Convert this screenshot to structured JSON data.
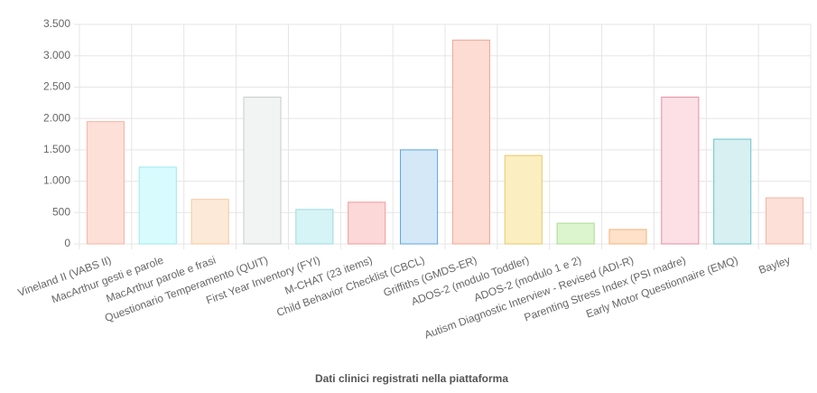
{
  "chart_data": {
    "type": "bar",
    "x_label": "Dati clinici registrati nella piattaforma",
    "categories": [
      "Vineland II (VABS II)",
      "MacArthur gesti e parole",
      "MacArthur parole e frasi",
      "Questionario Temperamento (QUIT)",
      "First Year Inventory (FYI)",
      "M-CHAT (23 items)",
      "Child Behavior Checklist (CBCL)",
      "Griffiths (GMDS-ER)",
      "ADOS-2 (modulo Toddler)",
      "ADOS-2 (modulo 1 e 2)",
      "Autism Diagnostic Interview - Revised (ADI-R)",
      "Parenting Stress Index (PSI madre)",
      "Early Motor Questionnaire (EMQ)",
      "Bayley"
    ],
    "values": [
      1950,
      1225,
      710,
      2340,
      550,
      665,
      1500,
      3250,
      1410,
      330,
      230,
      2340,
      1670,
      735
    ],
    "colors": [
      "#fde0d8",
      "#d8fcfd",
      "#fde9d8",
      "#f2f3f3",
      "#d6f3f5",
      "#fdd8d8",
      "#d4e8f8",
      "#fddcd4",
      "#fbeec0",
      "#dcf5cf",
      "#fde1c8",
      "#fde0e6",
      "#d8f0f2",
      "#fde0d8"
    ],
    "border_colors": [
      "#f5b5a6",
      "#9ee8f0",
      "#f5c9a0",
      "#c9cbcb",
      "#9fdbe0",
      "#f19a9a",
      "#5fa6da",
      "#f3a690",
      "#e6c86a",
      "#a9dd8f",
      "#f4b27b",
      "#e58da2",
      "#6ac3c9",
      "#f3b4a4"
    ],
    "ylim": [
      0,
      3500
    ],
    "yticks": [
      0,
      500,
      {
        "value": 1000,
        "label": "1.000"
      },
      {
        "value": 1500,
        "label": "1.500"
      },
      {
        "value": 2000,
        "label": "2.000"
      },
      {
        "value": 2500,
        "label": "2.500"
      },
      {
        "value": 3000,
        "label": "3.000"
      },
      {
        "value": 3500,
        "label": "3.500"
      }
    ],
    "grid": true
  }
}
